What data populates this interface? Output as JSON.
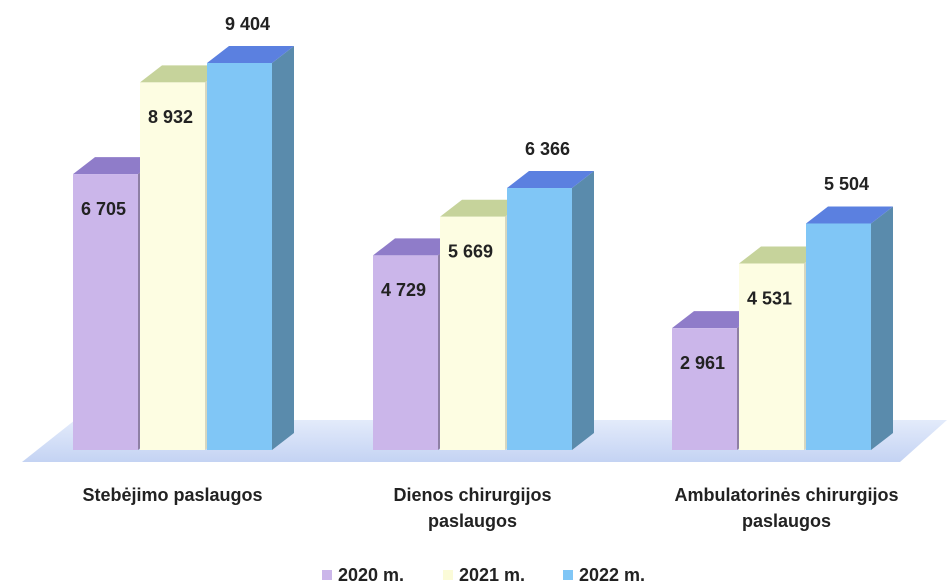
{
  "chart_data": {
    "type": "bar3d",
    "categories": [
      "Stebėjimo paslaugos",
      "Dienos chirurgijos paslaugos",
      "Ambulatorinės chirurgijos paslaugos"
    ],
    "series": [
      {
        "name": "2020 m.",
        "color": "#cbb6ea",
        "values": [
          6705,
          4729,
          2961
        ],
        "value_labels": [
          "6 705",
          "4 729",
          "2 961"
        ]
      },
      {
        "name": "2021 m.",
        "color": "#fdfde2",
        "values": [
          8932,
          5669,
          4531
        ],
        "value_labels": [
          "8 932",
          "5 669",
          "4 531"
        ]
      },
      {
        "name": "2022 m.",
        "color": "#80c6f6",
        "values": [
          9404,
          6366,
          5504
        ],
        "value_labels": [
          "9 404",
          "6 366",
          "5 504"
        ]
      }
    ],
    "legend": "bottom"
  }
}
